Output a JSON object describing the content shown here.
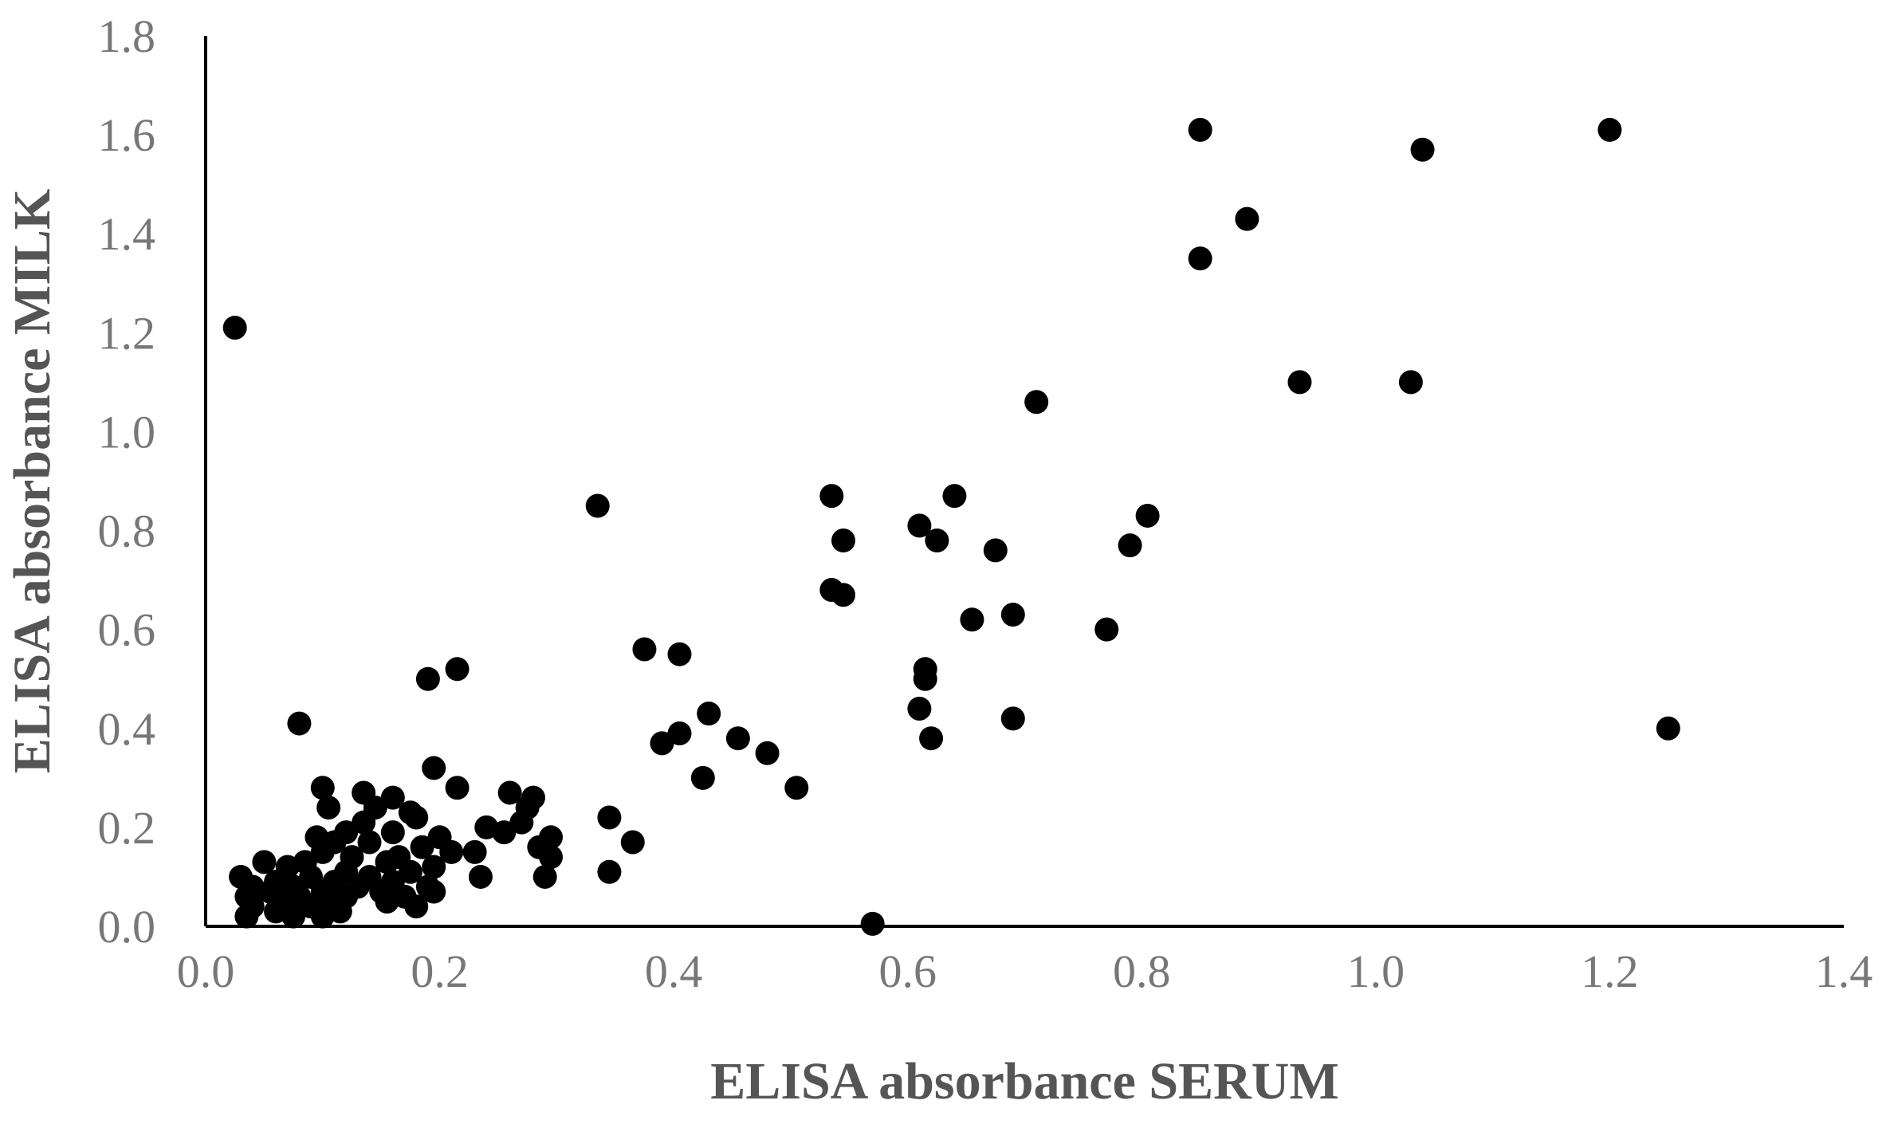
{
  "chart_data": {
    "type": "scatter",
    "title": "",
    "xlabel": "ELISA absorbance SERUM",
    "ylabel": "ELISA absorbance MILK",
    "xlim": [
      0,
      1.4
    ],
    "ylim": [
      0,
      1.8
    ],
    "xticks": [
      "0.0",
      "0.2",
      "0.4",
      "0.6",
      "0.8",
      "1.0",
      "1.2",
      "1.4"
    ],
    "yticks": [
      "0.0",
      "0.2",
      "0.4",
      "0.6",
      "0.8",
      "1.0",
      "1.2",
      "1.4",
      "1.6",
      "1.8"
    ],
    "grid": false,
    "legend": "none",
    "marker_color": "#000000",
    "points": [
      [
        0.85,
        1.61
      ],
      [
        1.2,
        1.61
      ],
      [
        1.04,
        1.57
      ],
      [
        0.89,
        1.43
      ],
      [
        0.85,
        1.35
      ],
      [
        0.025,
        1.21
      ],
      [
        0.935,
        1.1
      ],
      [
        1.03,
        1.1
      ],
      [
        0.71,
        1.06
      ],
      [
        0.335,
        0.85
      ],
      [
        0.535,
        0.87
      ],
      [
        0.64,
        0.87
      ],
      [
        0.805,
        0.83
      ],
      [
        0.61,
        0.81
      ],
      [
        0.545,
        0.78
      ],
      [
        0.625,
        0.78
      ],
      [
        0.79,
        0.77
      ],
      [
        0.675,
        0.76
      ],
      [
        0.535,
        0.68
      ],
      [
        0.545,
        0.67
      ],
      [
        0.69,
        0.63
      ],
      [
        0.655,
        0.62
      ],
      [
        0.77,
        0.6
      ],
      [
        0.375,
        0.56
      ],
      [
        0.405,
        0.55
      ],
      [
        0.215,
        0.52
      ],
      [
        0.19,
        0.5
      ],
      [
        0.615,
        0.52
      ],
      [
        0.615,
        0.5
      ],
      [
        0.61,
        0.44
      ],
      [
        0.43,
        0.43
      ],
      [
        0.69,
        0.42
      ],
      [
        0.08,
        0.41
      ],
      [
        1.25,
        0.4
      ],
      [
        0.405,
        0.39
      ],
      [
        0.455,
        0.38
      ],
      [
        0.39,
        0.37
      ],
      [
        0.62,
        0.38
      ],
      [
        0.48,
        0.35
      ],
      [
        0.195,
        0.32
      ],
      [
        0.425,
        0.3
      ],
      [
        0.505,
        0.28
      ],
      [
        0.215,
        0.28
      ],
      [
        0.1,
        0.28
      ],
      [
        0.135,
        0.27
      ],
      [
        0.26,
        0.27
      ],
      [
        0.16,
        0.26
      ],
      [
        0.28,
        0.26
      ],
      [
        0.105,
        0.24
      ],
      [
        0.145,
        0.24
      ],
      [
        0.175,
        0.23
      ],
      [
        0.275,
        0.24
      ],
      [
        0.345,
        0.22
      ],
      [
        0.135,
        0.21
      ],
      [
        0.18,
        0.22
      ],
      [
        0.27,
        0.21
      ],
      [
        0.24,
        0.2
      ],
      [
        0.12,
        0.19
      ],
      [
        0.095,
        0.18
      ],
      [
        0.16,
        0.19
      ],
      [
        0.2,
        0.18
      ],
      [
        0.255,
        0.19
      ],
      [
        0.295,
        0.18
      ],
      [
        0.365,
        0.17
      ],
      [
        0.11,
        0.17
      ],
      [
        0.14,
        0.17
      ],
      [
        0.185,
        0.16
      ],
      [
        0.23,
        0.15
      ],
      [
        0.285,
        0.16
      ],
      [
        0.21,
        0.15
      ],
      [
        0.1,
        0.15
      ],
      [
        0.125,
        0.14
      ],
      [
        0.165,
        0.14
      ],
      [
        0.295,
        0.14
      ],
      [
        0.05,
        0.13
      ],
      [
        0.085,
        0.13
      ],
      [
        0.155,
        0.13
      ],
      [
        0.195,
        0.12
      ],
      [
        0.07,
        0.12
      ],
      [
        0.12,
        0.11
      ],
      [
        0.175,
        0.11
      ],
      [
        0.345,
        0.11
      ],
      [
        0.03,
        0.1
      ],
      [
        0.09,
        0.1
      ],
      [
        0.14,
        0.1
      ],
      [
        0.235,
        0.1
      ],
      [
        0.29,
        0.1
      ],
      [
        0.06,
        0.09
      ],
      [
        0.11,
        0.09
      ],
      [
        0.16,
        0.09
      ],
      [
        0.04,
        0.08
      ],
      [
        0.075,
        0.08
      ],
      [
        0.13,
        0.08
      ],
      [
        0.19,
        0.08
      ],
      [
        0.055,
        0.07
      ],
      [
        0.1,
        0.07
      ],
      [
        0.15,
        0.07
      ],
      [
        0.035,
        0.06
      ],
      [
        0.08,
        0.06
      ],
      [
        0.12,
        0.06
      ],
      [
        0.17,
        0.06
      ],
      [
        0.195,
        0.07
      ],
      [
        0.065,
        0.05
      ],
      [
        0.105,
        0.05
      ],
      [
        0.155,
        0.05
      ],
      [
        0.04,
        0.04
      ],
      [
        0.09,
        0.04
      ],
      [
        0.18,
        0.04
      ],
      [
        0.06,
        0.03
      ],
      [
        0.115,
        0.03
      ],
      [
        0.035,
        0.02
      ],
      [
        0.075,
        0.02
      ],
      [
        0.1,
        0.02
      ],
      [
        0.57,
        0.005
      ]
    ]
  }
}
